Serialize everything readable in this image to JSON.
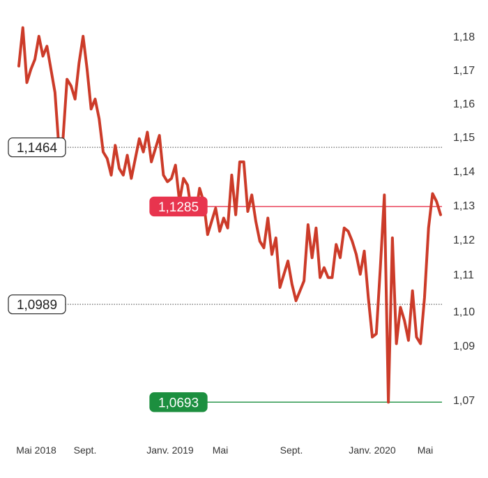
{
  "chart_data": {
    "type": "line",
    "title": "",
    "xlabel": "",
    "ylabel": "",
    "x_ticks": [
      "Mai 2018",
      "Sept.",
      "Janv. 2019",
      "Mai",
      "Sept.",
      "Janv. 2020",
      "Mai"
    ],
    "y_ticks": [
      "1,18",
      "1,17",
      "1,16",
      "1,15",
      "1,14",
      "1,13",
      "1,12",
      "1,11",
      "1,10",
      "1,09",
      "1,07"
    ],
    "ylim": [
      1.0693,
      1.1826
    ],
    "grid": false,
    "legend": "none",
    "series": [
      {
        "color": "#cc3b29",
        "values": [
          1.171,
          1.1826,
          1.166,
          1.17,
          1.173,
          1.18,
          1.174,
          1.177,
          1.17,
          1.163,
          1.146,
          1.149,
          1.167,
          1.165,
          1.161,
          1.172,
          1.18,
          1.17,
          1.158,
          1.161,
          1.155,
          1.145,
          1.143,
          1.138,
          1.147,
          1.14,
          1.138,
          1.144,
          1.137,
          1.143,
          1.149,
          1.145,
          1.151,
          1.142,
          1.146,
          1.15,
          1.138,
          1.136,
          1.137,
          1.141,
          1.13,
          1.137,
          1.135,
          1.127,
          1.126,
          1.134,
          1.13,
          1.12,
          1.124,
          1.128,
          1.121,
          1.125,
          1.122,
          1.138,
          1.126,
          1.142,
          1.142,
          1.127,
          1.132,
          1.124,
          1.118,
          1.116,
          1.125,
          1.114,
          1.119,
          1.104,
          1.108,
          1.112,
          1.105,
          1.1,
          1.103,
          1.106,
          1.123,
          1.113,
          1.122,
          1.107,
          1.11,
          1.107,
          1.107,
          1.117,
          1.113,
          1.122,
          1.121,
          1.118,
          1.114,
          1.108,
          1.115,
          1.101,
          1.089,
          1.09,
          1.11,
          1.132,
          1.0693,
          1.119,
          1.087,
          1.098,
          1.094,
          1.088,
          1.103,
          1.089,
          1.087,
          1.101,
          1.122,
          1.1324,
          1.13,
          1.126
        ]
      }
    ],
    "reference_lines": [
      {
        "value": 1.1464,
        "label": "1,1464",
        "style": "dotted",
        "line_color": "#444444",
        "badge_fill": "#ffffff",
        "badge_border": "#333333",
        "badge_text": "#222222",
        "badge_side": "left"
      },
      {
        "value": 1.1285,
        "label": "1,1285",
        "style": "solid",
        "line_color": "#e8344e",
        "badge_fill": "#e8344e",
        "badge_border": "#e8344e",
        "badge_text": "#ffffff",
        "badge_side": "middle"
      },
      {
        "value": 1.0989,
        "label": "1,0989",
        "style": "dotted",
        "line_color": "#444444",
        "badge_fill": "#ffffff",
        "badge_border": "#333333",
        "badge_text": "#222222",
        "badge_side": "left"
      },
      {
        "value": 1.0693,
        "label": "1,0693",
        "style": "solid",
        "line_color": "#1c8f3f",
        "badge_fill": "#1c8f3f",
        "badge_border": "#1c8f3f",
        "badge_text": "#ffffff",
        "badge_side": "middle"
      }
    ]
  }
}
